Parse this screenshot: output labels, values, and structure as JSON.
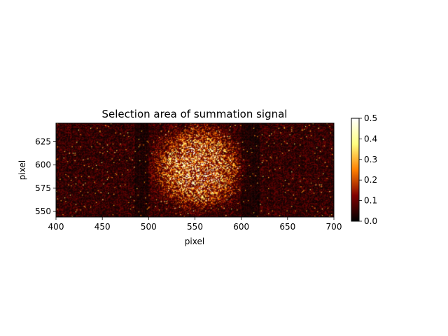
{
  "chart_data": {
    "type": "heatmap",
    "title": "Selection area of summation signal",
    "xlabel": "pixel",
    "ylabel": "pixel",
    "xlim": [
      400,
      700
    ],
    "ylim": [
      544,
      645
    ],
    "x_ticks": [
      "400",
      "450",
      "500",
      "550",
      "600",
      "650",
      "700"
    ],
    "y_ticks": [
      "550",
      "575",
      "600",
      "625"
    ],
    "colormap": "afmhot",
    "colorbar": {
      "range": [
        0.0,
        0.5
      ],
      "ticks": [
        "0.0",
        "0.1",
        "0.2",
        "0.3",
        "0.4",
        "0.5"
      ]
    },
    "signal": {
      "center": [
        553,
        597
      ],
      "radius": 42,
      "peak_value": 0.32,
      "background_value": 0.07,
      "dark_columns": [
        [
          485,
          500
        ],
        [
          600,
          620
        ]
      ]
    }
  }
}
